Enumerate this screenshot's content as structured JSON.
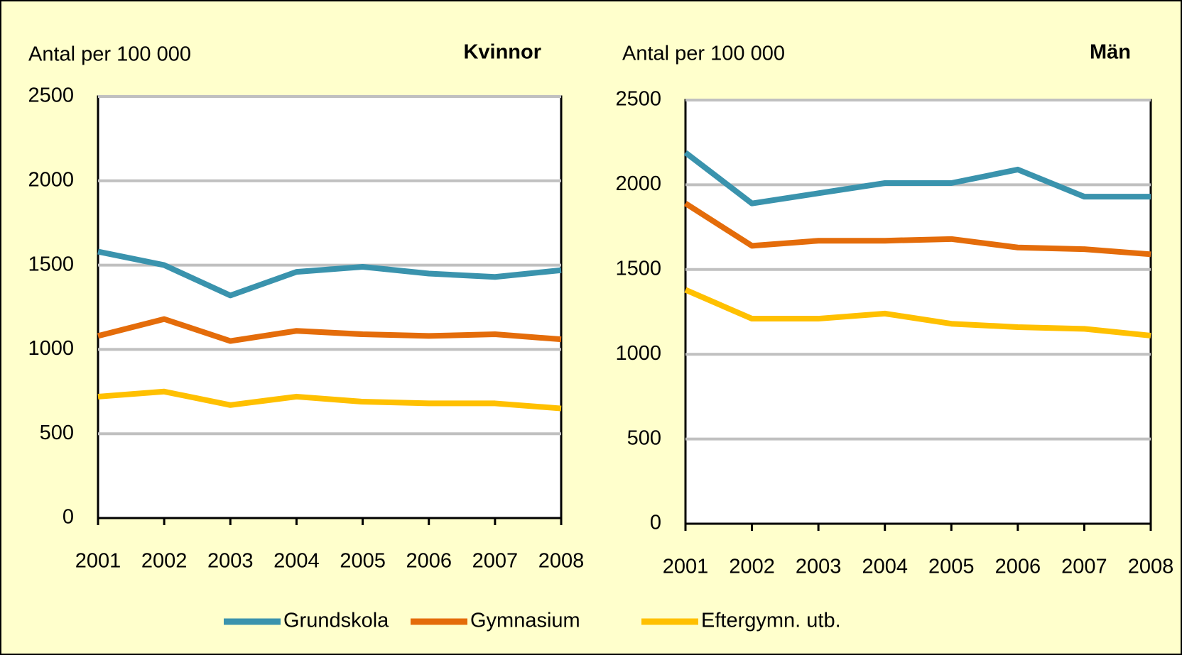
{
  "chart_data": [
    {
      "type": "line",
      "title": "Kvinnor",
      "ylabel": "Antal per 100 000",
      "categories": [
        "2001",
        "2002",
        "2003",
        "2004",
        "2005",
        "2006",
        "2007",
        "2008"
      ],
      "series": [
        {
          "name": "Grundskola",
          "color": "#3a93ad",
          "values": [
            1580,
            1500,
            1320,
            1460,
            1490,
            1450,
            1430,
            1470
          ]
        },
        {
          "name": "Gymnasium",
          "color": "#e46c0a",
          "values": [
            1080,
            1180,
            1050,
            1110,
            1090,
            1080,
            1090,
            1060
          ]
        },
        {
          "name": "Eftergymn. utb.",
          "color": "#ffc000",
          "values": [
            720,
            750,
            670,
            720,
            690,
            680,
            680,
            650
          ]
        }
      ],
      "ylim": [
        0,
        2500
      ],
      "yticks": [
        0,
        500,
        1000,
        1500,
        2000,
        2500
      ],
      "grid": true
    },
    {
      "type": "line",
      "title": "Män",
      "ylabel": "Antal per 100 000",
      "categories": [
        "2001",
        "2002",
        "2003",
        "2004",
        "2005",
        "2006",
        "2007",
        "2008"
      ],
      "series": [
        {
          "color": "#3a93ad",
          "values": [
            2190,
            1890,
            1950,
            2010,
            2010,
            2090,
            1930,
            1930
          ]
        },
        {
          "color": "#e46c0a",
          "values": [
            1890,
            1640,
            1670,
            1670,
            1680,
            1630,
            1620,
            1590
          ]
        },
        {
          "color": "#ffc000",
          "values": [
            1380,
            1210,
            1210,
            1240,
            1180,
            1160,
            1150,
            1110
          ]
        }
      ],
      "ylim": [
        0,
        2500
      ],
      "yticks": [
        0,
        500,
        1000,
        1500,
        2000,
        2500
      ],
      "grid": true
    }
  ]
}
